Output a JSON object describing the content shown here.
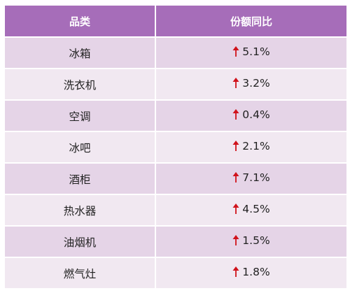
{
  "chart_data": {
    "type": "table",
    "columns": [
      "品类",
      "份额同比"
    ],
    "rows": [
      {
        "category": "冰箱",
        "change": "5.1%",
        "value": 5.1,
        "direction": "up"
      },
      {
        "category": "洗衣机",
        "change": "3.2%",
        "value": 3.2,
        "direction": "up"
      },
      {
        "category": "空调",
        "change": "0.4%",
        "value": 0.4,
        "direction": "up"
      },
      {
        "category": "冰吧",
        "change": "2.1%",
        "value": 2.1,
        "direction": "up"
      },
      {
        "category": "酒柜",
        "change": "7.1%",
        "value": 7.1,
        "direction": "up"
      },
      {
        "category": "热水器",
        "change": "4.5%",
        "value": 4.5,
        "direction": "up"
      },
      {
        "category": "油烟机",
        "change": "1.5%",
        "value": 1.5,
        "direction": "up"
      },
      {
        "category": "燃气灶",
        "change": "1.8%",
        "value": 1.8,
        "direction": "up"
      }
    ]
  },
  "colors": {
    "header_bg": "#a66db9",
    "row_odd_bg": "#e5d4e7",
    "row_even_bg": "#f1e8f1",
    "arrow": "#d0121b"
  },
  "icons": {
    "trend": "arrow-up-icon"
  }
}
